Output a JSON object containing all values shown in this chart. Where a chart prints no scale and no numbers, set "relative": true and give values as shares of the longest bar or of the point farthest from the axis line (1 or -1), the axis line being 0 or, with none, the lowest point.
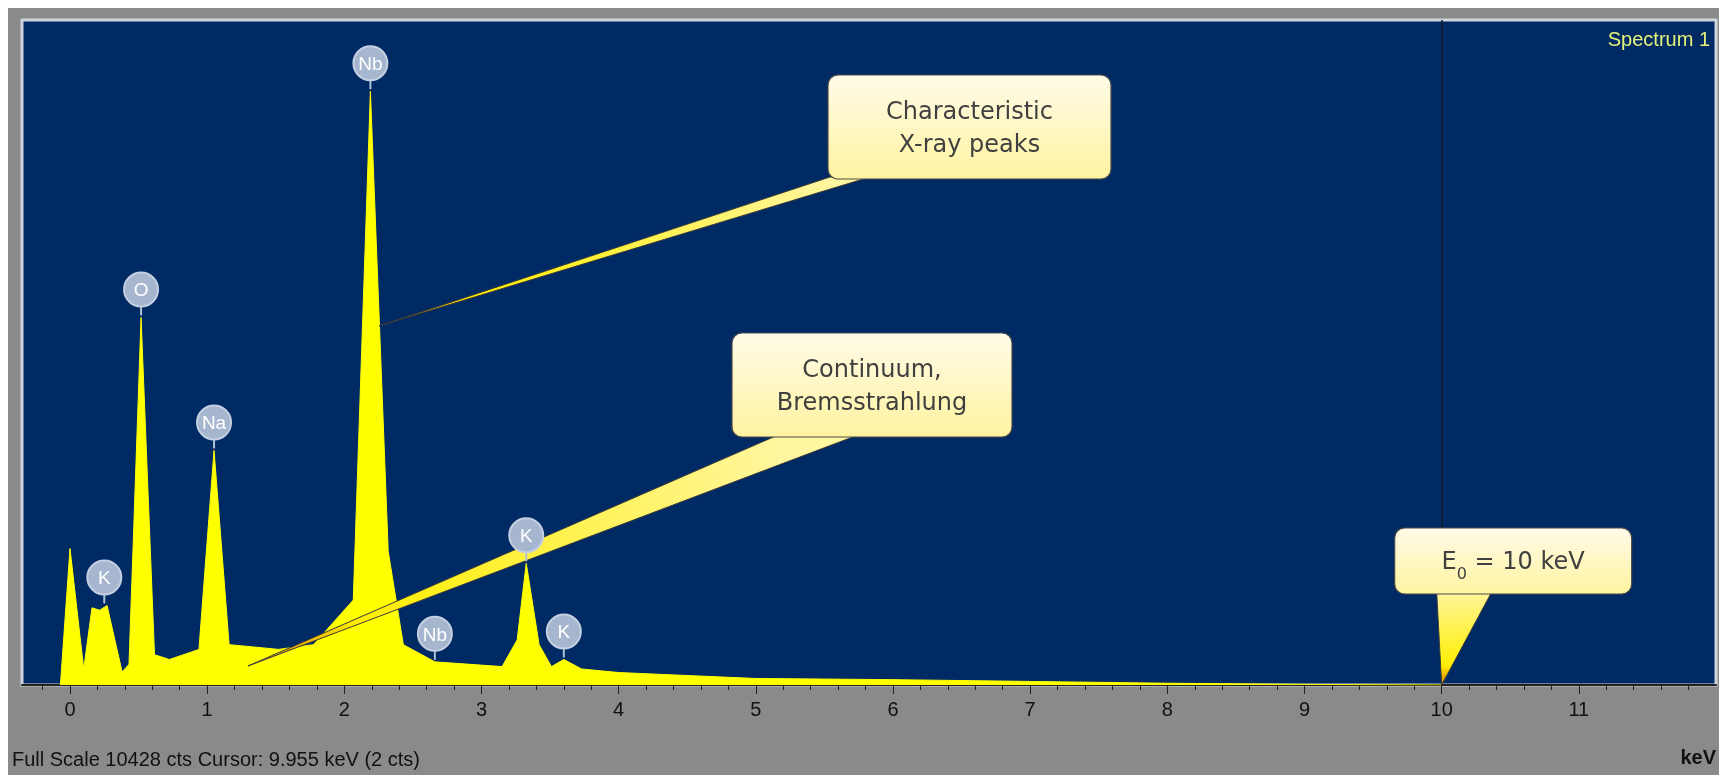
{
  "chart_data": {
    "type": "area",
    "title": "Spectrum 1",
    "xlabel": "keV",
    "relative": true,
    "xlim": [
      -0.35,
      12
    ],
    "xticks": [
      0,
      1,
      2,
      3,
      4,
      5,
      6,
      7,
      8,
      9,
      10,
      11
    ],
    "series": [
      {
        "color": "#ffff00",
        "x": [
          -0.07,
          0.0,
          0.1,
          0.16,
          0.217,
          0.27,
          0.38,
          0.43,
          0.518,
          0.616,
          0.725,
          0.94,
          1.05,
          1.16,
          1.52,
          1.775,
          2.065,
          2.19,
          2.32,
          2.43,
          2.66,
          3.15,
          3.26,
          3.326,
          3.42,
          3.51,
          3.6,
          3.73,
          4,
          5,
          6,
          7,
          8,
          8.5,
          9,
          10
        ],
        "values": [
          0,
          0.23,
          0.027,
          0.13,
          0.126,
          0.134,
          0.022,
          0.035,
          0.619,
          0.051,
          0.043,
          0.06,
          0.395,
          0.068,
          0.06,
          0.068,
          0.143,
          1.0,
          0.225,
          0.068,
          0.039,
          0.031,
          0.076,
          0.205,
          0.068,
          0.031,
          0.043,
          0.027,
          0.021,
          0.011,
          0.009,
          0.006,
          0.003,
          0.002,
          0.001,
          0
        ]
      }
    ],
    "ref_lines": [
      {
        "axis": "x",
        "value": 10,
        "label": "E$_{0}$ = 10 keV",
        "color": "#101830"
      }
    ],
    "annotations": [
      "Full Scale 10428 cts  Cursor: 9.955 keV (2 cts)",
      {
        "text": "K",
        "x": 0.25,
        "y": 0.134
      },
      {
        "text": "O",
        "x": 0.518,
        "y": 0.619
      },
      {
        "text": "Na",
        "x": 1.05,
        "y": 0.395
      },
      {
        "text": "Nb",
        "x": 2.19,
        "y": 1.0
      },
      {
        "text": "Nb",
        "x": 2.66,
        "y": 0.039
      },
      {
        "text": "K",
        "x": 3.326,
        "y": 0.205
      },
      {
        "text": "K",
        "x": 3.6,
        "y": 0.043
      },
      "Characteristic X-ray peaks",
      "Continuum, Bremsstrahlung"
    ]
  }
}
